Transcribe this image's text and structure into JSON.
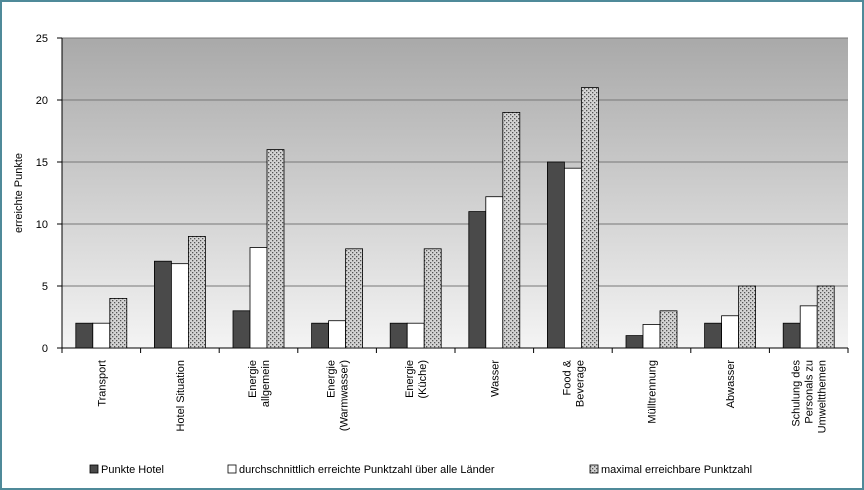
{
  "chart_data": {
    "type": "bar",
    "y_label": "erreichte Punkte",
    "categories": [
      "Transport",
      "Hotel Situation",
      "Energie\nallgemein",
      "Energie\n(Warmwasser)",
      "Energie\n(Küche)",
      "Wasser",
      "Food &\nBeverage",
      "Mülltrennung",
      "Abwasser",
      "Schulung des\nPersonals zu\nUmweltthemen"
    ],
    "series": [
      {
        "name": "Punkte Hotel",
        "color": "#4a4a4a",
        "values": [
          2,
          7,
          3,
          2,
          2,
          11,
          15,
          1,
          2,
          2
        ]
      },
      {
        "name": "durchschnittlich erreichte Punktzahl über alle Länder",
        "color": "#ffffff",
        "values": [
          2,
          6.8,
          8.1,
          2.2,
          2,
          12.2,
          14.5,
          1.9,
          2.6,
          3.4
        ]
      },
      {
        "name": "maximal erreichbare Punktzahl",
        "color": "#d4d4d4",
        "values": [
          4,
          9,
          16,
          8,
          8,
          19,
          21,
          3,
          5,
          5
        ]
      }
    ],
    "ylim": [
      0,
      25
    ],
    "yticks": [
      0,
      5,
      10,
      15,
      20,
      25
    ],
    "grid": true,
    "legend": "bottom"
  }
}
